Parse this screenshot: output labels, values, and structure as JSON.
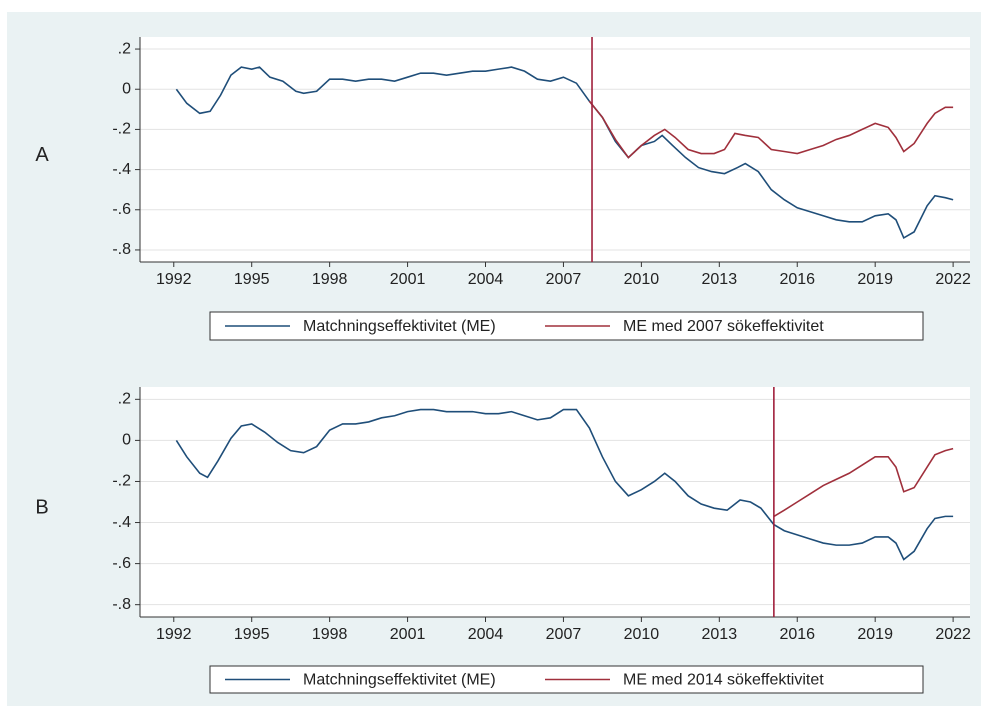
{
  "chart_data": [
    {
      "type": "line",
      "panel": "A",
      "xlim": [
        1990.7,
        2022.65
      ],
      "ylim": [
        -0.86,
        0.26
      ],
      "xticks": [
        1992,
        1995,
        1998,
        2001,
        2004,
        2007,
        2010,
        2013,
        2016,
        2019,
        2022
      ],
      "yticks": [
        {
          "value": 0.2,
          "label": ".2"
        },
        0,
        {
          "value": -0.2,
          "label": "-.2"
        },
        {
          "value": -0.4,
          "label": "-.4"
        },
        {
          "value": -0.6,
          "label": "-.6"
        },
        {
          "value": -0.8,
          "label": "-.8"
        }
      ],
      "grid": true,
      "vline": 2008.1,
      "vline_color": "#a0203c",
      "series": [
        {
          "name": "Matchningseffektivitet (ME)",
          "color": "#1f4e79",
          "x": [
            1992.1,
            1992.5,
            1993.0,
            1993.4,
            1993.8,
            1994.2,
            1994.6,
            1995.0,
            1995.3,
            1995.7,
            1996.2,
            1996.7,
            1997.0,
            1997.5,
            1998.0,
            1998.5,
            1999.0,
            1999.5,
            2000.0,
            2000.5,
            2001.0,
            2001.5,
            2002.0,
            2002.5,
            2003.0,
            2003.5,
            2004.0,
            2004.5,
            2005.0,
            2005.5,
            2006.0,
            2006.5,
            2007.0,
            2007.5,
            2008.0,
            2008.5,
            2009.0,
            2009.5,
            2010.0,
            2010.5,
            2010.8,
            2011.2,
            2011.7,
            2012.2,
            2012.7,
            2013.2,
            2013.7,
            2014.0,
            2014.5,
            2015.0,
            2015.5,
            2016.0,
            2016.5,
            2017.0,
            2017.5,
            2018.0,
            2018.5,
            2019.0,
            2019.5,
            2019.8,
            2020.1,
            2020.5,
            2021.0,
            2021.3,
            2021.7,
            2022.0
          ],
          "values": [
            0,
            -0.07,
            -0.12,
            -0.11,
            -0.03,
            0.07,
            0.11,
            0.1,
            0.11,
            0.06,
            0.04,
            -0.01,
            -0.02,
            -0.01,
            0.05,
            0.05,
            0.04,
            0.05,
            0.05,
            0.04,
            0.06,
            0.08,
            0.08,
            0.07,
            0.08,
            0.09,
            0.09,
            0.1,
            0.11,
            0.09,
            0.05,
            0.04,
            0.06,
            0.03,
            -0.06,
            -0.14,
            -0.26,
            -0.34,
            -0.28,
            -0.26,
            -0.23,
            -0.28,
            -0.34,
            -0.39,
            -0.41,
            -0.42,
            -0.39,
            -0.37,
            -0.41,
            -0.5,
            -0.55,
            -0.59,
            -0.61,
            -0.63,
            -0.65,
            -0.66,
            -0.66,
            -0.63,
            -0.62,
            -0.65,
            -0.74,
            -0.71,
            -0.58,
            -0.53,
            -0.54,
            -0.55
          ]
        },
        {
          "name": "ME med 2007 sökeffektivitet",
          "color": "#a0303c",
          "x": [
            2008.0,
            2008.5,
            2009.0,
            2009.5,
            2010.0,
            2010.5,
            2010.9,
            2011.3,
            2011.8,
            2012.3,
            2012.8,
            2013.2,
            2013.6,
            2014.0,
            2014.5,
            2015.0,
            2015.5,
            2016.0,
            2016.5,
            2017.0,
            2017.5,
            2018.0,
            2018.5,
            2019.0,
            2019.5,
            2019.8,
            2020.1,
            2020.5,
            2021.0,
            2021.3,
            2021.7,
            2022.0
          ],
          "values": [
            -0.06,
            -0.14,
            -0.25,
            -0.34,
            -0.28,
            -0.23,
            -0.2,
            -0.24,
            -0.3,
            -0.32,
            -0.32,
            -0.3,
            -0.22,
            -0.23,
            -0.24,
            -0.3,
            -0.31,
            -0.32,
            -0.3,
            -0.28,
            -0.25,
            -0.23,
            -0.2,
            -0.17,
            -0.19,
            -0.24,
            -0.31,
            -0.27,
            -0.17,
            -0.12,
            -0.09,
            -0.09
          ]
        }
      ]
    },
    {
      "type": "line",
      "panel": "B",
      "xlim": [
        1990.7,
        2022.65
      ],
      "ylim": [
        -0.86,
        0.26
      ],
      "xticks": [
        1992,
        1995,
        1998,
        2001,
        2004,
        2007,
        2010,
        2013,
        2016,
        2019,
        2022
      ],
      "yticks": [
        {
          "value": 0.2,
          "label": ".2"
        },
        0,
        {
          "value": -0.2,
          "label": "-.2"
        },
        {
          "value": -0.4,
          "label": "-.4"
        },
        {
          "value": -0.6,
          "label": "-.6"
        },
        {
          "value": -0.8,
          "label": "-.8"
        }
      ],
      "grid": true,
      "vline": 2015.1,
      "vline_color": "#a0203c",
      "series": [
        {
          "name": "Matchningseffektivitet (ME)",
          "color": "#1f4e79",
          "x": [
            1992.1,
            1992.5,
            1993.0,
            1993.3,
            1993.7,
            1994.2,
            1994.6,
            1995.0,
            1995.5,
            1996.0,
            1996.5,
            1997.0,
            1997.5,
            1998.0,
            1998.5,
            1999.0,
            1999.5,
            2000.0,
            2000.5,
            2001.0,
            2001.5,
            2002.0,
            2002.5,
            2003.0,
            2003.5,
            2004.0,
            2004.5,
            2005.0,
            2005.5,
            2006.0,
            2006.5,
            2007.0,
            2007.5,
            2008.0,
            2008.5,
            2009.0,
            2009.5,
            2010.0,
            2010.5,
            2010.9,
            2011.3,
            2011.8,
            2012.3,
            2012.8,
            2013.3,
            2013.8,
            2014.2,
            2014.6,
            2015.1,
            2015.5,
            2016.0,
            2016.5,
            2017.0,
            2017.5,
            2018.0,
            2018.5,
            2019.0,
            2019.5,
            2019.8,
            2020.1,
            2020.5,
            2021.0,
            2021.3,
            2021.7,
            2022.0
          ],
          "values": [
            0,
            -0.08,
            -0.16,
            -0.18,
            -0.1,
            0.01,
            0.07,
            0.08,
            0.04,
            -0.01,
            -0.05,
            -0.06,
            -0.03,
            0.05,
            0.08,
            0.08,
            0.09,
            0.11,
            0.12,
            0.14,
            0.15,
            0.15,
            0.14,
            0.14,
            0.14,
            0.13,
            0.13,
            0.14,
            0.12,
            0.1,
            0.11,
            0.15,
            0.15,
            0.06,
            -0.08,
            -0.2,
            -0.27,
            -0.24,
            -0.2,
            -0.16,
            -0.2,
            -0.27,
            -0.31,
            -0.33,
            -0.34,
            -0.29,
            -0.3,
            -0.33,
            -0.41,
            -0.44,
            -0.46,
            -0.48,
            -0.5,
            -0.51,
            -0.51,
            -0.5,
            -0.47,
            -0.47,
            -0.5,
            -0.58,
            -0.54,
            -0.43,
            -0.38,
            -0.37,
            -0.37
          ]
        },
        {
          "name": "ME med 2014 sökeffektivitet",
          "color": "#a0303c",
          "x": [
            2015.1,
            2015.5,
            2016.0,
            2016.5,
            2017.0,
            2017.5,
            2018.0,
            2018.5,
            2019.0,
            2019.5,
            2019.8,
            2020.1,
            2020.5,
            2021.0,
            2021.3,
            2021.7,
            2022.0
          ],
          "values": [
            -0.37,
            -0.34,
            -0.3,
            -0.26,
            -0.22,
            -0.19,
            -0.16,
            -0.12,
            -0.08,
            -0.08,
            -0.13,
            -0.25,
            -0.23,
            -0.13,
            -0.07,
            -0.05,
            -0.04
          ]
        }
      ]
    }
  ]
}
